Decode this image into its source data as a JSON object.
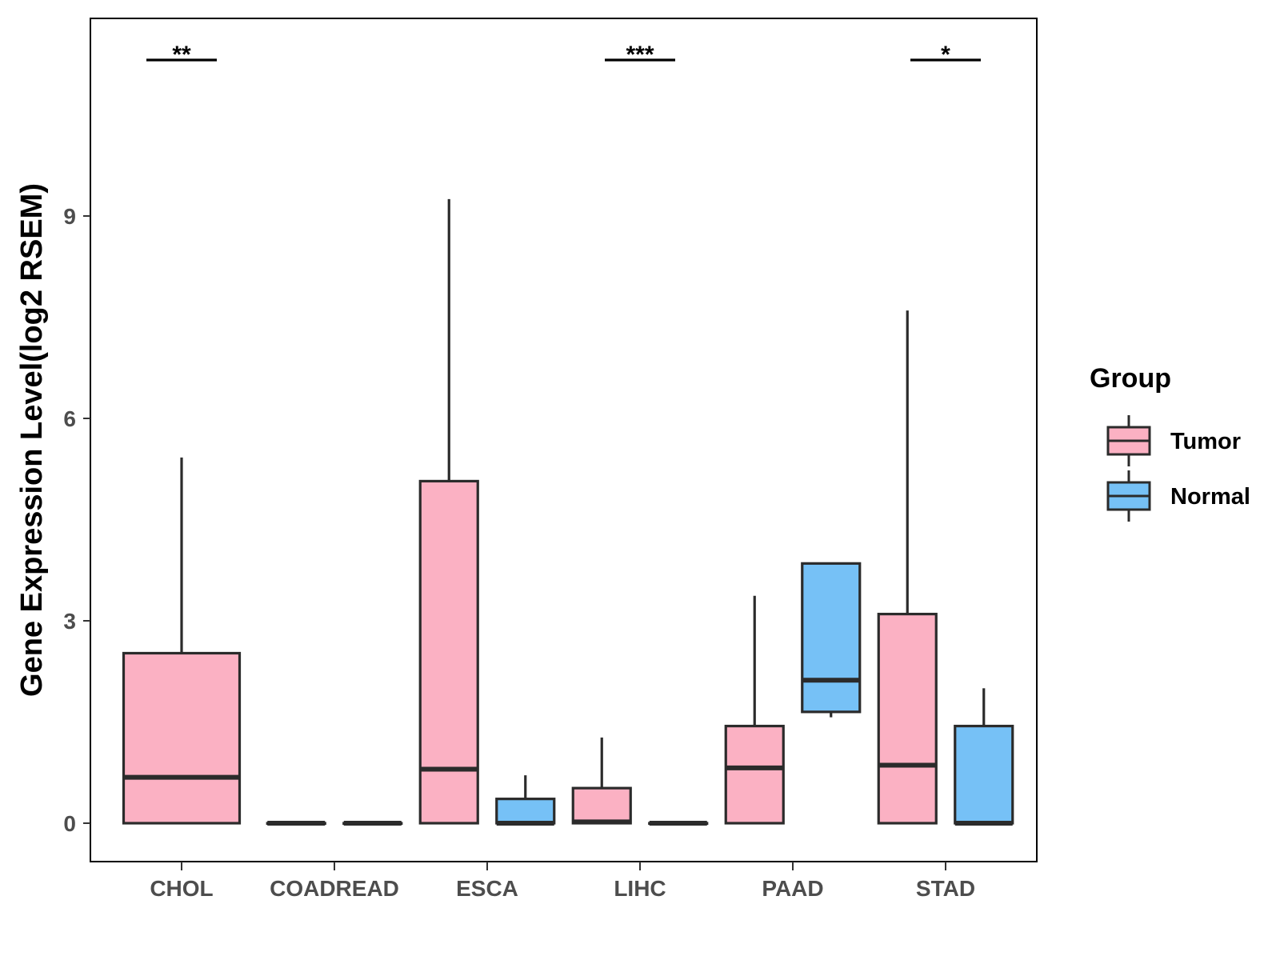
{
  "chart_data": {
    "type": "boxplot",
    "xlabel": "",
    "ylabel": "Gene Expression Level(log2 RSEM)",
    "ylim": [
      -0.6,
      11.9
    ],
    "yticks": [
      0,
      3,
      6,
      9
    ],
    "categories": [
      "CHOL",
      "COADREAD",
      "ESCA",
      "LIHC",
      "PAAD",
      "STAD"
    ],
    "legend": {
      "title": "Group",
      "position": "right",
      "entries": [
        {
          "name": "Tumor",
          "color": "#FBB1C3"
        },
        {
          "name": "Normal",
          "color": "#76C1F6"
        }
      ]
    },
    "series": [
      {
        "name": "Tumor",
        "color": "#FBB1C3",
        "boxes": [
          {
            "category": "CHOL",
            "min": 0,
            "q1": 0,
            "median": 0.68,
            "q3": 2.52,
            "max": 5.42,
            "width": "full"
          },
          {
            "category": "COADREAD",
            "min": 0,
            "q1": 0,
            "median": 0,
            "q3": 0,
            "max": 0,
            "width": "half"
          },
          {
            "category": "ESCA",
            "min": 0,
            "q1": 0,
            "median": 0.8,
            "q3": 5.07,
            "max": 9.25,
            "width": "half"
          },
          {
            "category": "LIHC",
            "min": 0,
            "q1": 0,
            "median": 0.02,
            "q3": 0.52,
            "max": 1.27,
            "width": "half"
          },
          {
            "category": "PAAD",
            "min": 0,
            "q1": 0,
            "median": 0.82,
            "q3": 1.44,
            "max": 3.37,
            "width": "half"
          },
          {
            "category": "STAD",
            "min": 0,
            "q1": 0,
            "median": 0.86,
            "q3": 3.1,
            "max": 7.6,
            "width": "half"
          }
        ]
      },
      {
        "name": "Normal",
        "color": "#76C1F6",
        "boxes": [
          {
            "category": "COADREAD",
            "min": 0,
            "q1": 0,
            "median": 0,
            "q3": 0,
            "max": 0,
            "width": "half"
          },
          {
            "category": "ESCA",
            "min": 0,
            "q1": 0,
            "median": 0,
            "q3": 0.36,
            "max": 0.71,
            "width": "half"
          },
          {
            "category": "LIHC",
            "min": 0,
            "q1": 0,
            "median": 0,
            "q3": 0,
            "max": 0,
            "width": "half"
          },
          {
            "category": "PAAD",
            "min": 1.57,
            "q1": 1.65,
            "median": 2.12,
            "q3": 3.85,
            "max": 3.85,
            "width": "half"
          },
          {
            "category": "STAD",
            "min": 0,
            "q1": 0,
            "median": 0,
            "q3": 1.44,
            "max": 2.0,
            "width": "half"
          }
        ]
      }
    ],
    "annotations": [
      {
        "category": "CHOL",
        "label": "**"
      },
      {
        "category": "LIHC",
        "label": "***"
      },
      {
        "category": "STAD",
        "label": "*"
      }
    ]
  }
}
